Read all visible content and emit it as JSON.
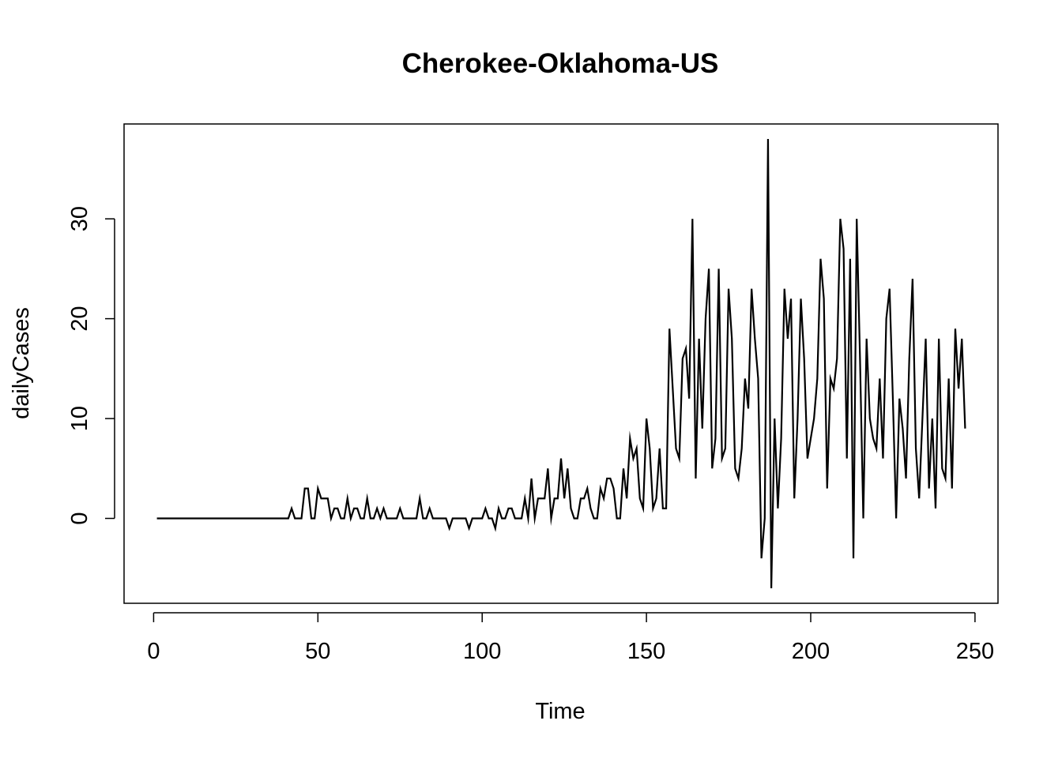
{
  "chart_data": {
    "type": "line",
    "title": "Cherokee-Oklahoma-US",
    "xlabel": "Time",
    "ylabel": "dailyCases",
    "xlim": [
      -9,
      257
    ],
    "ylim": [
      -8.5,
      39.5
    ],
    "x_ticks": [
      0,
      50,
      100,
      150,
      200,
      250
    ],
    "y_ticks": [
      0,
      10,
      20,
      30
    ],
    "grid": false,
    "legend": "none",
    "line_color": "#000000",
    "series": [
      {
        "x_start": 1,
        "values": [
          0,
          0,
          0,
          0,
          0,
          0,
          0,
          0,
          0,
          0,
          0,
          0,
          0,
          0,
          0,
          0,
          0,
          0,
          0,
          0,
          0,
          0,
          0,
          0,
          0,
          0,
          0,
          0,
          0,
          0,
          0,
          0,
          0,
          0,
          0,
          0,
          0,
          0,
          0,
          0,
          0,
          1,
          0,
          0,
          0,
          3,
          3,
          0,
          0,
          3,
          2,
          2,
          2,
          0,
          1,
          1,
          0,
          0,
          2,
          0,
          1,
          1,
          0,
          0,
          2,
          0,
          0,
          1,
          0,
          1,
          0,
          0,
          0,
          0,
          1,
          0,
          0,
          0,
          0,
          0,
          2,
          0,
          0,
          1,
          0,
          0,
          0,
          0,
          0,
          -1,
          0,
          0,
          0,
          0,
          0,
          -1,
          0,
          0,
          0,
          0,
          1,
          0,
          0,
          -1,
          1,
          0,
          0,
          1,
          1,
          0,
          0,
          0,
          2,
          0,
          4,
          0,
          2,
          2,
          2,
          5,
          0,
          2,
          2,
          6,
          2,
          5,
          1,
          0,
          0,
          2,
          2,
          3,
          1,
          0,
          0,
          3,
          2,
          4,
          4,
          3,
          0,
          0,
          5,
          2,
          8,
          6,
          7,
          2,
          1,
          10,
          7,
          1,
          2,
          7,
          1,
          1,
          19,
          13,
          7,
          6,
          16,
          17,
          12,
          30,
          4,
          18,
          9,
          20,
          25,
          5,
          8,
          25,
          6,
          7,
          23,
          18,
          5,
          4,
          7,
          14,
          11,
          23,
          18,
          14,
          -4,
          0,
          38,
          -7,
          10,
          1,
          8,
          23,
          18,
          22,
          2,
          10,
          22,
          16,
          6,
          8,
          10,
          14,
          26,
          22,
          3,
          14,
          13,
          16,
          30,
          27,
          6,
          26,
          -4,
          30,
          16,
          0,
          18,
          10,
          8,
          7,
          14,
          6,
          20,
          23,
          12,
          0,
          12,
          9,
          4,
          16,
          24,
          7,
          2,
          10,
          18,
          3,
          10,
          1,
          18,
          5,
          4,
          14,
          3,
          19,
          13,
          18,
          9
        ]
      }
    ]
  }
}
